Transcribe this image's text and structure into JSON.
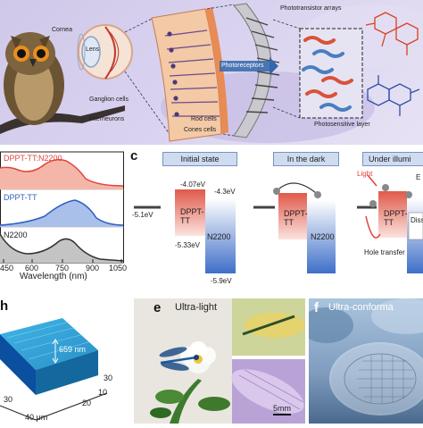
{
  "panel_a": {
    "labels": {
      "cornea": "Cornea",
      "lens": "Lens",
      "ganglion": "Ganglion cells",
      "interneurons": "Interneurons",
      "rod": "Rod cells",
      "cone": "Cones cells",
      "photoreceptors": "Photoreceptors",
      "arrays": "Phototransistor arrays",
      "layer": "Photosensitive layer"
    }
  },
  "panel_b": {
    "series_labels": [
      "DPPT-TT:N2200",
      "DPPT-TT",
      "N2200"
    ],
    "xlabel": "Wavelength (nm)",
    "xticks": [
      "450",
      "600",
      "750",
      "900",
      "1050"
    ],
    "colors": {
      "blend": "#e0443c",
      "dppt": "#2f5fc0",
      "n2200": "#333333"
    }
  },
  "panel_c": {
    "letter": "c",
    "states": [
      "Initial state",
      "In the dark",
      "Under illumi"
    ],
    "energy": {
      "dppt_lumo": "-4.07eV",
      "n2200_lumo": "-4.3eV",
      "electrode": "-5.1eV",
      "dppt_homo": "-5.33eV",
      "n2200_homo": "-5.9eV"
    },
    "box_labels": {
      "dppt": "DPPT-\nTT",
      "n2200": "N2200"
    },
    "illum": {
      "light": "Light",
      "hole": "Hole transfer",
      "diss": "Diss",
      "e": "E"
    }
  },
  "panel_d": {
    "height": "659 nm",
    "ticks_right": [
      "10",
      "20",
      "30"
    ],
    "ticks_front": [
      "30"
    ],
    "unit": "40 μm",
    "letter": "h"
  },
  "panel_e": {
    "letter": "e",
    "title": "Ultra-light",
    "scale": "5mm"
  },
  "panel_f": {
    "letter": "f",
    "title": "Ultra-conforma"
  }
}
